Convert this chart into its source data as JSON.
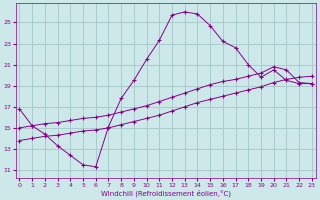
{
  "xlabel": "Windchill (Refroidissement éolien,°C)",
  "background_color": "#cce8e8",
  "grid_color": "#aacccc",
  "line_color": "#880088",
  "x_ticks": [
    0,
    1,
    2,
    3,
    4,
    5,
    6,
    7,
    8,
    9,
    10,
    11,
    12,
    13,
    14,
    15,
    16,
    17,
    18,
    19,
    20,
    21,
    22,
    23
  ],
  "y_ticks": [
    11,
    13,
    15,
    17,
    19,
    21,
    23,
    25
  ],
  "xlim": [
    -0.3,
    23.3
  ],
  "ylim": [
    10.2,
    26.8
  ],
  "series1_x": [
    0,
    1,
    2,
    3,
    4,
    5,
    6,
    7,
    8,
    9,
    10,
    11,
    12,
    13,
    14,
    15,
    16,
    17,
    18,
    19,
    20,
    21,
    22,
    23
  ],
  "series1_y": [
    16.8,
    15.2,
    14.4,
    13.3,
    12.4,
    11.5,
    11.3,
    15.1,
    17.8,
    19.5,
    21.5,
    23.3,
    25.7,
    26.0,
    25.8,
    24.7,
    23.2,
    22.6,
    21.0,
    19.8,
    20.5,
    19.5,
    19.2,
    19.2
  ],
  "series2_x": [
    0,
    1,
    2,
    3,
    4,
    5,
    6,
    7,
    8,
    9,
    10,
    11,
    12,
    13,
    14,
    15,
    16,
    17,
    18,
    19,
    20,
    21,
    22,
    23
  ],
  "series2_y": [
    15.0,
    15.2,
    15.4,
    15.5,
    15.7,
    15.9,
    16.0,
    16.2,
    16.5,
    16.8,
    17.1,
    17.5,
    17.9,
    18.3,
    18.7,
    19.1,
    19.4,
    19.6,
    19.9,
    20.2,
    20.8,
    20.5,
    19.3,
    19.2
  ],
  "series3_x": [
    0,
    1,
    2,
    3,
    4,
    5,
    6,
    7,
    8,
    9,
    10,
    11,
    12,
    13,
    14,
    15,
    16,
    17,
    18,
    19,
    20,
    21,
    22,
    23
  ],
  "series3_y": [
    13.8,
    14.0,
    14.2,
    14.3,
    14.5,
    14.7,
    14.8,
    15.0,
    15.3,
    15.6,
    15.9,
    16.2,
    16.6,
    17.0,
    17.4,
    17.7,
    18.0,
    18.3,
    18.6,
    18.9,
    19.3,
    19.6,
    19.8,
    19.9
  ]
}
